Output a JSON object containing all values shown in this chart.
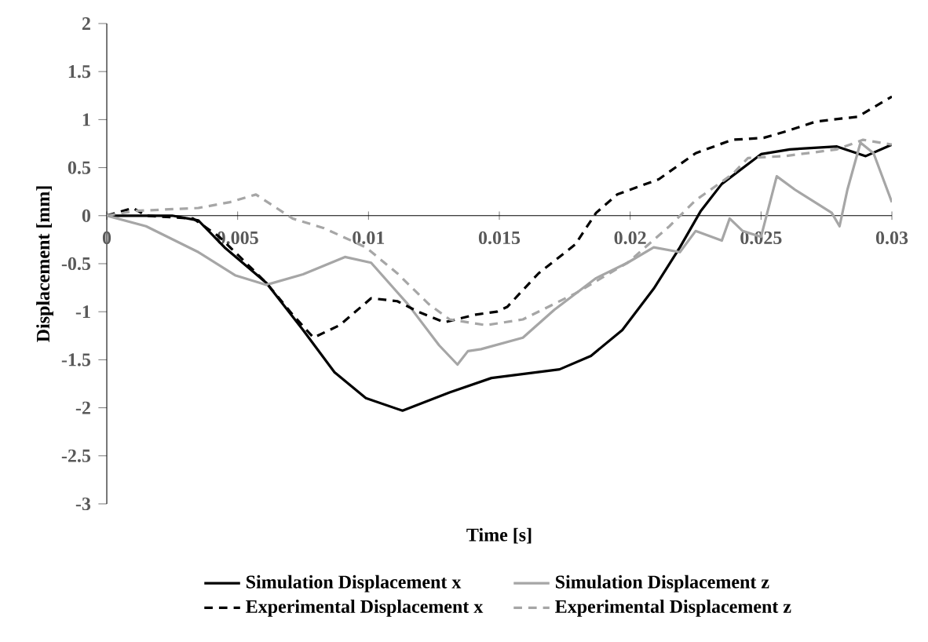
{
  "chart_data": {
    "type": "line",
    "xlabel": "Time [s]",
    "ylabel": "Displacement [mm]",
    "xlim": [
      0,
      0.03
    ],
    "ylim": [
      -3,
      2
    ],
    "xticks": [
      0,
      0.005,
      0.01,
      0.015,
      0.02,
      0.025,
      0.03
    ],
    "yticks": [
      -3,
      -2.5,
      -2,
      -1.5,
      -1,
      -0.5,
      0,
      0.5,
      1,
      1.5,
      2
    ],
    "grid": false,
    "legend": "bottom",
    "marker": "none",
    "series": [
      {
        "name": "Simulation Displacement x",
        "color": "#000000",
        "line_style": "solid",
        "x": [
          0,
          0.0025,
          0.0035,
          0.0045,
          0.0061,
          0.0075,
          0.0087,
          0.0099,
          0.0113,
          0.0131,
          0.0147,
          0.0173,
          0.0185,
          0.0197,
          0.0209,
          0.0219,
          0.0227,
          0.0235,
          0.025,
          0.0261,
          0.0279,
          0.029,
          0.03
        ],
        "values": [
          0,
          0,
          -0.05,
          -0.33,
          -0.7,
          -1.19,
          -1.63,
          -1.9,
          -2.03,
          -1.84,
          -1.69,
          -1.6,
          -1.46,
          -1.19,
          -0.76,
          -0.33,
          0.05,
          0.33,
          0.64,
          0.69,
          0.72,
          0.62,
          0.74
        ]
      },
      {
        "name": "Simulation Displacement z",
        "color": "#a6a6a6",
        "line_style": "solid",
        "x": [
          0,
          0.0015,
          0.0035,
          0.0049,
          0.0061,
          0.0075,
          0.0091,
          0.0101,
          0.0115,
          0.0127,
          0.0134,
          0.0138,
          0.0143,
          0.0159,
          0.0171,
          0.0187,
          0.0199,
          0.0209,
          0.0219,
          0.0225,
          0.0235,
          0.0238,
          0.0243,
          0.025,
          0.0256,
          0.0263,
          0.0277,
          0.028,
          0.0283,
          0.0288,
          0.0293,
          0.03
        ],
        "values": [
          0,
          -0.11,
          -0.38,
          -0.62,
          -0.72,
          -0.61,
          -0.43,
          -0.49,
          -0.92,
          -1.35,
          -1.55,
          -1.41,
          -1.39,
          -1.27,
          -0.98,
          -0.65,
          -0.49,
          -0.33,
          -0.38,
          -0.16,
          -0.26,
          -0.03,
          -0.16,
          -0.22,
          0.41,
          0.27,
          0.03,
          -0.11,
          0.27,
          0.76,
          0.65,
          0.14
        ]
      },
      {
        "name": "Experimental Displacement x",
        "color": "#000000",
        "line_style": "dashed",
        "x": [
          0,
          0.001,
          0.0015,
          0.0033,
          0.0043,
          0.0061,
          0.0071,
          0.0079,
          0.0089,
          0.0101,
          0.0111,
          0.0119,
          0.0129,
          0.0141,
          0.0149,
          0.0153,
          0.0165,
          0.0179,
          0.0187,
          0.0195,
          0.0211,
          0.0225,
          0.0239,
          0.0251,
          0.0261,
          0.0271,
          0.0287,
          0.03
        ],
        "values": [
          0,
          0.08,
          0,
          -0.03,
          -0.22,
          -0.7,
          -1.03,
          -1.27,
          -1.14,
          -0.86,
          -0.89,
          -1.0,
          -1.11,
          -1.03,
          -1.0,
          -0.95,
          -0.6,
          -0.3,
          0.03,
          0.22,
          0.38,
          0.65,
          0.79,
          0.81,
          0.89,
          0.98,
          1.03,
          1.24
        ]
      },
      {
        "name": "Experimental Displacement z",
        "color": "#a6a6a6",
        "line_style": "dashed",
        "x": [
          0,
          0.0011,
          0.0035,
          0.0047,
          0.0057,
          0.0071,
          0.0083,
          0.0099,
          0.0111,
          0.0123,
          0.0131,
          0.0145,
          0.0159,
          0.0179,
          0.0199,
          0.0215,
          0.0225,
          0.0239,
          0.0245,
          0.0259,
          0.0279,
          0.0289,
          0.03
        ],
        "values": [
          0,
          0.05,
          0.08,
          0.14,
          0.22,
          -0.03,
          -0.13,
          -0.33,
          -0.6,
          -0.92,
          -1.08,
          -1.14,
          -1.08,
          -0.81,
          -0.49,
          -0.11,
          0.16,
          0.43,
          0.6,
          0.62,
          0.69,
          0.79,
          0.74
        ]
      }
    ]
  }
}
